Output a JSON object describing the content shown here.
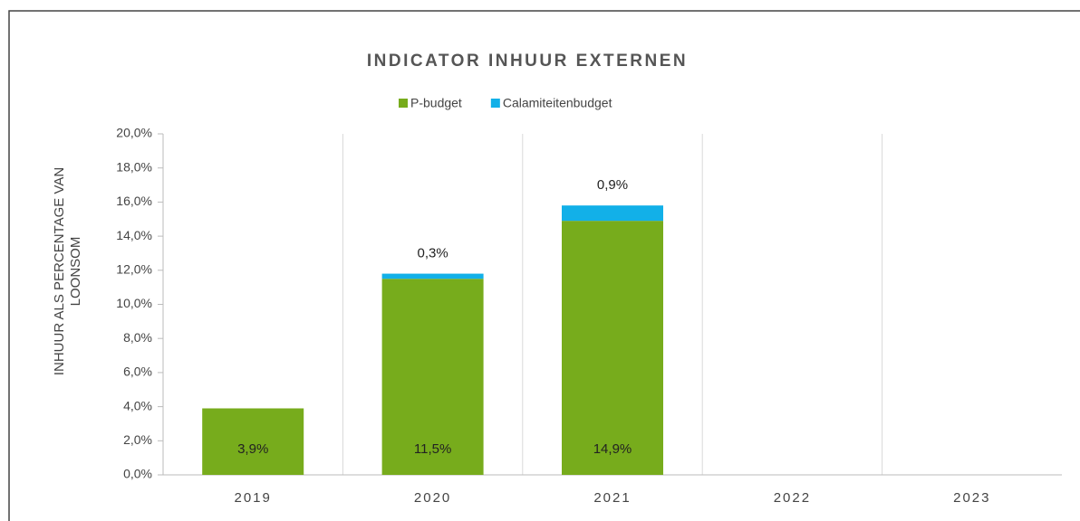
{
  "chart_data": {
    "type": "stacked_bar",
    "title": "INDICATOR INHUUR EXTERNEN",
    "ylabel": [
      "INHUUR ALS PERCENTAGE VAN",
      "LOONSOM"
    ],
    "categories": [
      "2019",
      "2020",
      "2021",
      "2022",
      "2023"
    ],
    "series": [
      {
        "name": "P-budget",
        "color": "#77ac1c",
        "values": [
          3.9,
          11.5,
          14.9,
          null,
          null
        ],
        "value_labels": [
          "3,9%",
          "11,5%",
          "14,9%",
          null,
          null
        ]
      },
      {
        "name": "Calamiteitenbudget",
        "color": "#12b0e8",
        "values": [
          null,
          0.3,
          0.9,
          null,
          null
        ],
        "value_labels": [
          null,
          "0,3%",
          "0,9%",
          null,
          null
        ]
      }
    ],
    "ylim": [
      0,
      20
    ],
    "yticks": [
      {
        "value": 0,
        "label": "0,0%"
      },
      {
        "value": 2,
        "label": "2,0%"
      },
      {
        "value": 4,
        "label": "4,0%"
      },
      {
        "value": 6,
        "label": "6,0%"
      },
      {
        "value": 8,
        "label": "8,0%"
      },
      {
        "value": 10,
        "label": "10,0%"
      },
      {
        "value": 12,
        "label": "12,0%"
      },
      {
        "value": 14,
        "label": "14,0%"
      },
      {
        "value": 16,
        "label": "16,0%"
      },
      {
        "value": 18,
        "label": "18,0%"
      },
      {
        "value": 20,
        "label": "20,0%"
      }
    ],
    "legend": "top"
  }
}
